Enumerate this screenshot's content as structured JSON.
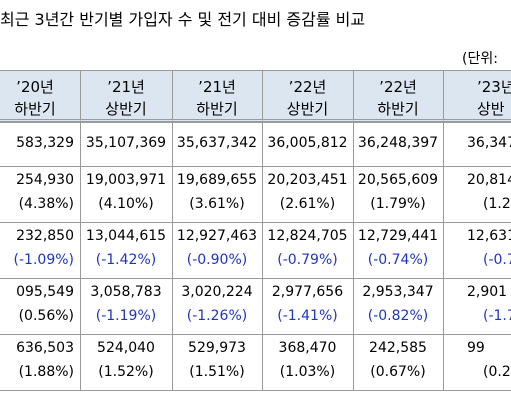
{
  "header": {
    "title": "최근 3년간 반기별 가입자 수 및 전기 대비 증감률 비교",
    "unit": "(단위:"
  },
  "table": {
    "header_color": "#dce6f1",
    "columns": [
      [
        "’20년",
        "하반기"
      ],
      [
        "’21년",
        "상반기"
      ],
      [
        "’21년",
        "하반기"
      ],
      [
        "’22년",
        "상반기"
      ],
      [
        "’22년",
        "하반기"
      ],
      [
        "’23년",
        "상반"
      ]
    ],
    "groups": [
      [
        {
          "cells": [
            "583,329",
            "35,107,369",
            "35,637,342",
            "36,005,812",
            "36,248,397",
            "36,347"
          ],
          "colors": [
            "#000000",
            "#000000",
            "#000000",
            "#000000",
            "#000000",
            "#000000"
          ]
        }
      ],
      [
        {
          "cells": [
            "254,930",
            "19,003,971",
            "19,689,655",
            "20,203,451",
            "20,565,609",
            "20,814"
          ],
          "colors": [
            "#000000",
            "#000000",
            "#000000",
            "#000000",
            "#000000",
            "#000000"
          ]
        },
        {
          "cells": [
            "(4.38%)",
            "(4.10%)",
            "(3.61%)",
            "(2.61%)",
            "(1.79%)",
            "(1.2"
          ],
          "colors": [
            "#000000",
            "#000000",
            "#000000",
            "#000000",
            "#000000",
            "#000000"
          ]
        }
      ],
      [
        {
          "cells": [
            "232,850",
            "13,044,615",
            "12,927,463",
            "12,824,705",
            "12,729,441",
            "12,631"
          ],
          "colors": [
            "#000000",
            "#000000",
            "#000000",
            "#000000",
            "#000000",
            "#000000"
          ]
        },
        {
          "cells": [
            "(-1.09%)",
            "(-1.42%)",
            "(-0.90%)",
            "(-0.79%)",
            "(-0.74%)",
            "(-0.7"
          ],
          "colors": [
            "#1f35c4",
            "#1f35c4",
            "#1f35c4",
            "#1f35c4",
            "#1f35c4",
            "#1f35c4"
          ]
        }
      ],
      [
        {
          "cells": [
            "095,549",
            "3,058,783",
            "3,020,224",
            "2,977,656",
            "2,953,347",
            "2,901"
          ],
          "colors": [
            "#000000",
            "#000000",
            "#000000",
            "#000000",
            "#000000",
            "#000000"
          ]
        },
        {
          "cells": [
            "(0.56%)",
            "(-1.19%)",
            "(-1.26%)",
            "(-1.41%)",
            "(-0.82%)",
            "(-1.7"
          ],
          "colors": [
            "#000000",
            "#1f35c4",
            "#1f35c4",
            "#1f35c4",
            "#1f35c4",
            "#1f35c4"
          ]
        }
      ],
      [
        {
          "cells": [
            "636,503",
            "524,040",
            "529,973",
            "368,470",
            "242,585",
            "99"
          ],
          "colors": [
            "#000000",
            "#000000",
            "#000000",
            "#000000",
            "#000000",
            "#000000"
          ]
        },
        {
          "cells": [
            "(1.88%)",
            "(1.52%)",
            "(1.51%)",
            "(1.03%)",
            "(0.67%)",
            "(0.2"
          ],
          "colors": [
            "#000000",
            "#000000",
            "#000000",
            "#000000",
            "#000000",
            "#000000"
          ]
        }
      ]
    ]
  }
}
